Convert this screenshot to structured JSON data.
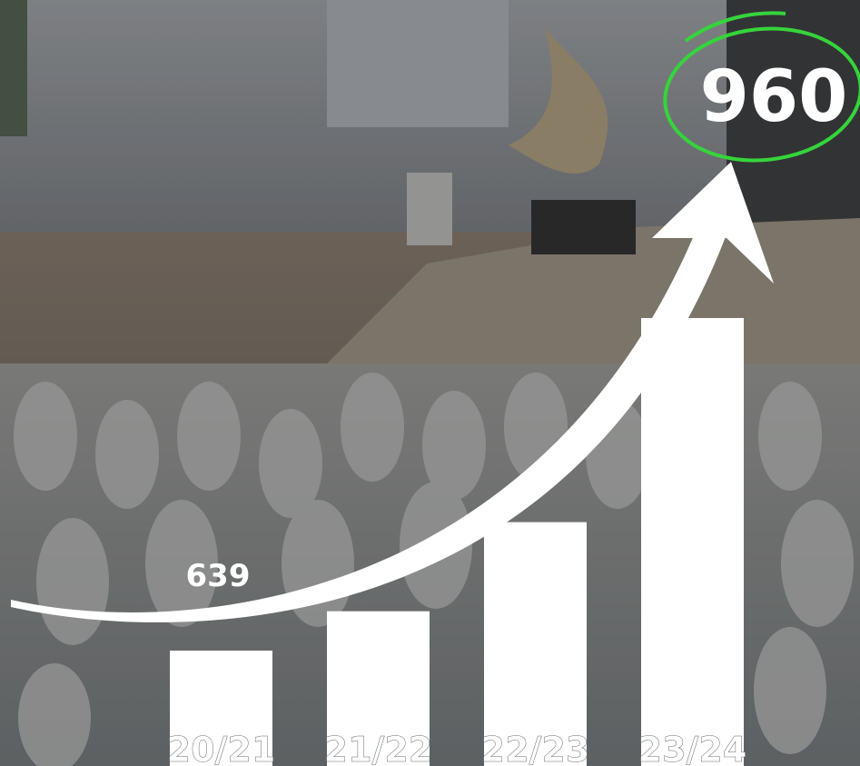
{
  "chart_data": {
    "type": "bar",
    "categories": [
      "20/21",
      "21/22",
      "22/23",
      "23/24"
    ],
    "values": [
      639,
      677,
      763,
      960
    ],
    "color": "#ffffff"
  }
}
